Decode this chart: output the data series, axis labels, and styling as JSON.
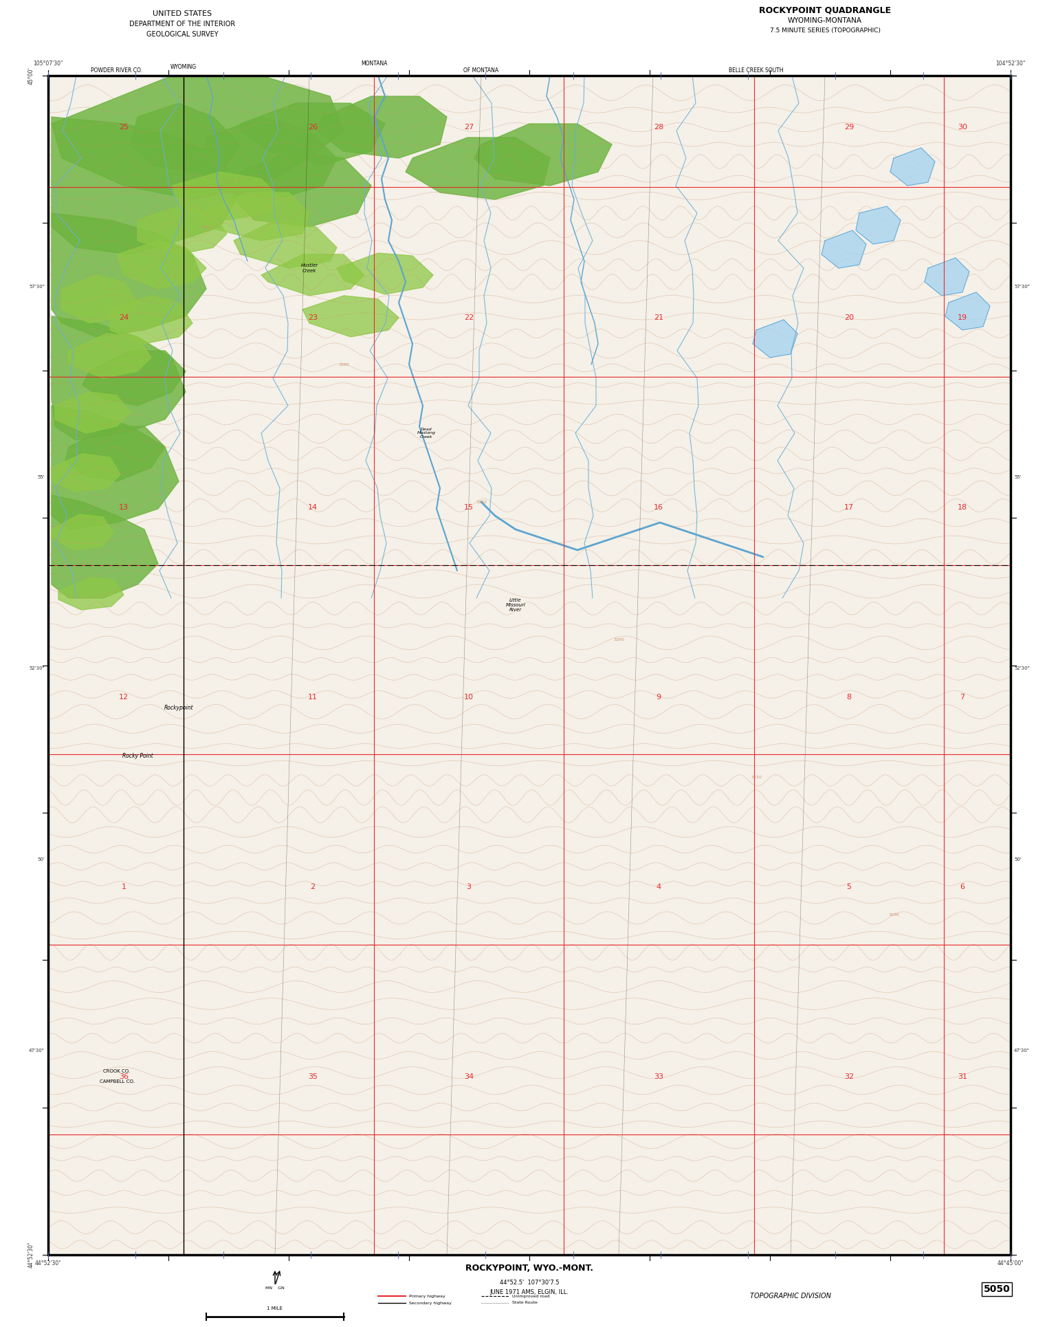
{
  "title_left_line1": "UNITED STATES",
  "title_left_line2": "DEPARTMENT OF THE INTERIOR",
  "title_left_line3": "GEOLOGICAL SURVEY",
  "title_right_line1": "ROCKYPOINT QUADRANGLE",
  "title_right_line2": "WYOMING-MONTANA",
  "title_right_line3": "7.5 MINUTE SERIES (TOPOGRAPHIC)",
  "bottom_name": "ROCKYPOINT, WYO.-MONT.",
  "bottom_coords": "44°52.5’  107°30’7.5",
  "bottom_year": "JUNE 1971 AMS, ELGIN, ILL.",
  "bottom_number": "5050",
  "map_bg": "#f5f0e8",
  "green_color": "#6db33f",
  "blue_color": "#7ec8e3",
  "red_color": "#e8292c",
  "brown_color": "#c8956c",
  "black_color": "#000000",
  "white_color": "#ffffff",
  "border_color": "#000000",
  "top_margin_color": "#ffffff",
  "bottom_margin_color": "#ffffff"
}
